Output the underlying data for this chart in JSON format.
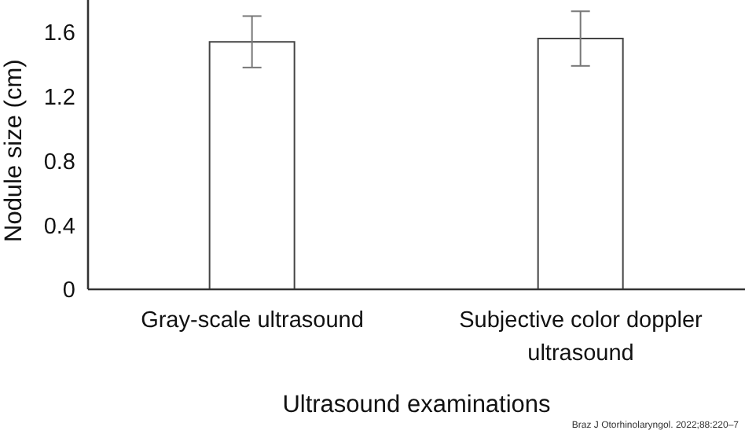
{
  "chart_data": {
    "type": "bar",
    "categories": [
      "Gray-scale ultrasound",
      "Subjective color doppler ultrasound"
    ],
    "values": [
      1.54,
      1.56
    ],
    "color": "#ffffff",
    "errors": [
      [
        1.38,
        1.7
      ],
      [
        1.39,
        1.73
      ]
    ],
    "xlabel": "Ultrasound examinations",
    "ylabel": "Nodule size (cm)",
    "ylim": [
      0,
      1.8
    ],
    "yticks": [
      0,
      0.4,
      0.8,
      1.2,
      1.6
    ],
    "grid": false,
    "legend": false,
    "annotations": [
      "Braz J Otorhinolaryngol. 2022;88:220–7"
    ]
  }
}
